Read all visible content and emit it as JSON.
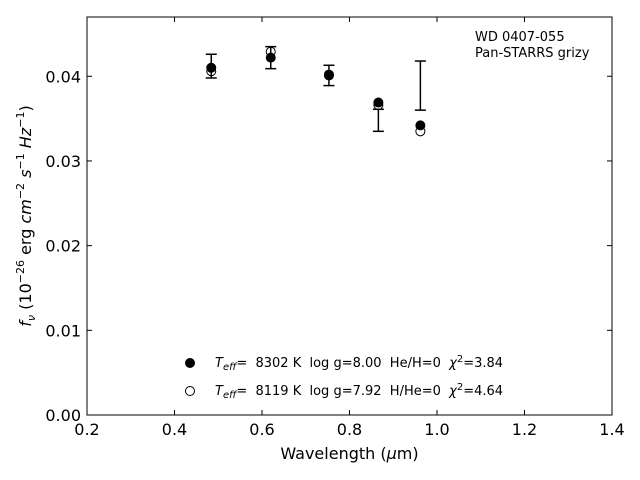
{
  "chart_data": {
    "type": "scatter",
    "xlabel": "Wavelength (μm)",
    "ylabel": "fν (10⁻²⁶ erg cm⁻² s⁻¹ Hz⁻¹)",
    "xlim": [
      0.2,
      1.4
    ],
    "ylim": [
      0.0,
      0.047
    ],
    "x_ticks": [
      "0.2",
      "0.4",
      "0.6",
      "0.8",
      "1.0",
      "1.2",
      "1.4"
    ],
    "y_ticks": [
      "0.00",
      "0.01",
      "0.02",
      "0.03",
      "0.04"
    ],
    "annotation": [
      "WD 0407-055",
      "Pan-STARRS grizy"
    ],
    "observed": {
      "x": [
        0.484,
        0.62,
        0.753,
        0.866,
        0.962
      ],
      "y": [
        0.0412,
        0.0422,
        0.0401,
        0.0348,
        0.0389
      ],
      "yerr": [
        0.0014,
        0.0013,
        0.0012,
        0.0013,
        0.0029
      ]
    },
    "series": [
      {
        "name": "Teff=  8302 K  log g=8.00  He/H=0  χ²=3.84",
        "marker": "filled-circle",
        "x": [
          0.484,
          0.62,
          0.753,
          0.866,
          0.962
        ],
        "y": [
          0.041,
          0.0422,
          0.0401,
          0.0369,
          0.0342
        ]
      },
      {
        "name": "Teff=  8119 K  log g=7.92  H/He=0  χ²=4.64",
        "marker": "open-circle",
        "x": [
          0.484,
          0.62,
          0.753,
          0.866,
          0.962
        ],
        "y": [
          0.0406,
          0.0429,
          0.0402,
          0.0366,
          0.0335
        ]
      }
    ],
    "legend_position": "bottom-center",
    "grid": false
  }
}
